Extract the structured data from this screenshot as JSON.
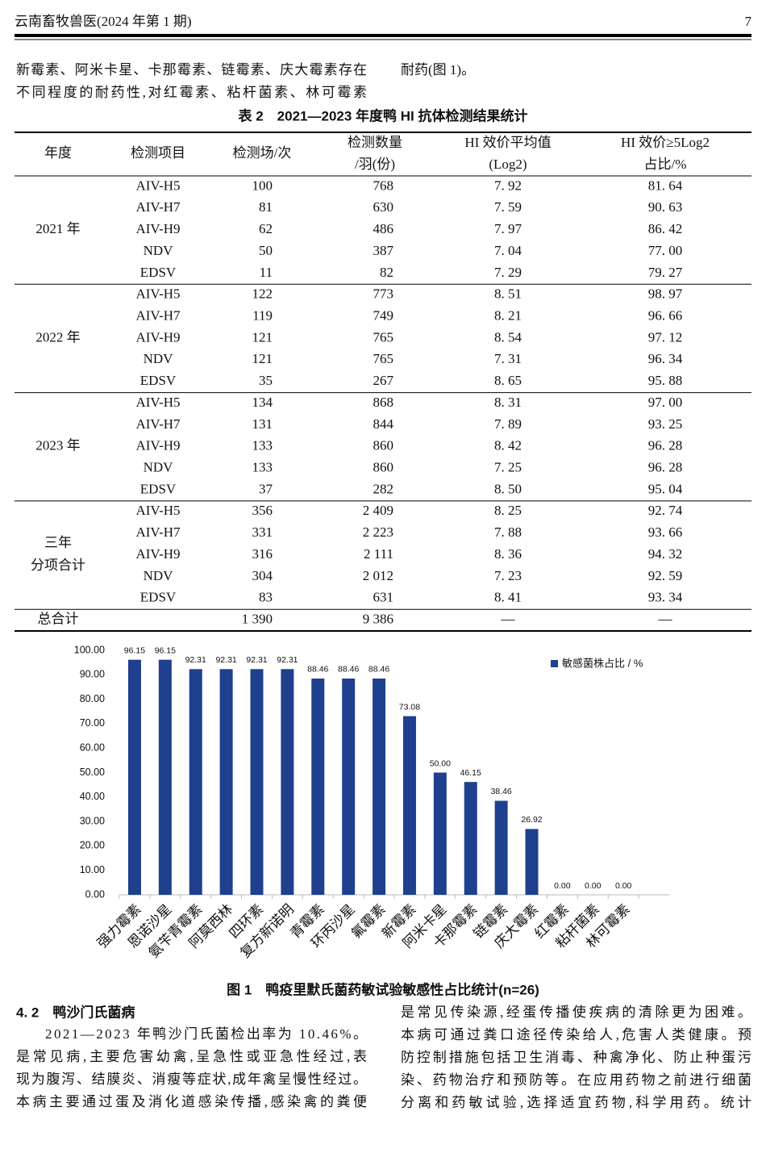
{
  "header": {
    "journal": "云南畜牧兽医(2024 年第 1 期)",
    "page": "7"
  },
  "intro": {
    "left": [
      "新霉素、阿米卡星、卡那霉素、链霉素、庆大霉素存在",
      "不同程度的耐药性,对红霉素、粘杆菌素、林可霉素"
    ],
    "right": [
      "耐药(图 1)。"
    ]
  },
  "table": {
    "caption": "表 2　2021—2023 年度鸭 HI 抗体检测结果统计",
    "columns": [
      [
        "年度"
      ],
      [
        "检测项目"
      ],
      [
        "检测场/次"
      ],
      [
        "检测数量",
        "/羽(份)"
      ],
      [
        "HI 效价平均值",
        "(Log2)"
      ],
      [
        "HI 效价≥5Log2",
        "占比/%"
      ]
    ],
    "groups": [
      {
        "year": [
          "2021 年"
        ],
        "rows": [
          [
            "AIV-H5",
            "100",
            "768",
            "7. 92",
            "81. 64"
          ],
          [
            "AIV-H7",
            "81",
            "630",
            "7. 59",
            "90. 63"
          ],
          [
            "AIV-H9",
            "62",
            "486",
            "7. 97",
            "86. 42"
          ],
          [
            "NDV",
            "50",
            "387",
            "7. 04",
            "77. 00"
          ],
          [
            "EDSV",
            "11",
            "82",
            "7. 29",
            "79. 27"
          ]
        ]
      },
      {
        "year": [
          "2022 年"
        ],
        "rows": [
          [
            "AIV-H5",
            "122",
            "773",
            "8. 51",
            "98. 97"
          ],
          [
            "AIV-H7",
            "119",
            "749",
            "8. 21",
            "96. 66"
          ],
          [
            "AIV-H9",
            "121",
            "765",
            "8. 54",
            "97. 12"
          ],
          [
            "NDV",
            "121",
            "765",
            "7. 31",
            "96. 34"
          ],
          [
            "EDSV",
            "35",
            "267",
            "8. 65",
            "95. 88"
          ]
        ]
      },
      {
        "year": [
          "2023 年"
        ],
        "rows": [
          [
            "AIV-H5",
            "134",
            "868",
            "8. 31",
            "97. 00"
          ],
          [
            "AIV-H7",
            "131",
            "844",
            "7. 89",
            "93. 25"
          ],
          [
            "AIV-H9",
            "133",
            "860",
            "8. 42",
            "96. 28"
          ],
          [
            "NDV",
            "133",
            "860",
            "7. 25",
            "96. 28"
          ],
          [
            "EDSV",
            "37",
            "282",
            "8. 50",
            "95. 04"
          ]
        ]
      },
      {
        "year": [
          "三年",
          "分项合计"
        ],
        "rows": [
          [
            "AIV-H5",
            "356",
            "2 409",
            "8. 25",
            "92. 74"
          ],
          [
            "AIV-H7",
            "331",
            "2 223",
            "7. 88",
            "93. 66"
          ],
          [
            "AIV-H9",
            "316",
            "2 111",
            "8. 36",
            "94. 32"
          ],
          [
            "NDV",
            "304",
            "2 012",
            "7. 23",
            "92. 59"
          ],
          [
            "EDSV",
            "83",
            "631",
            "8. 41",
            "93. 34"
          ]
        ]
      }
    ],
    "total": [
      "总合计",
      "",
      "1 390",
      "9 386",
      "—",
      "—"
    ]
  },
  "chart_data": {
    "type": "bar",
    "caption": "图 1　鸭疫里默氏菌药敏试验敏感性占比统计(n=26)",
    "categories": [
      "强力霉素",
      "恩诺沙星",
      "氨苄青霉素",
      "阿莫西林",
      "四环素",
      "复方新诺明",
      "青霉素",
      "环丙沙星",
      "氟霉素",
      "新霉素",
      "阿米卡星",
      "卡那霉素",
      "链霉素",
      "庆大霉素",
      "红霉素",
      "粘杆菌素",
      "林可霉素"
    ],
    "series": [
      {
        "name": "敏感菌株占比 / %",
        "color": "#1f3f8f",
        "values": [
          96.15,
          96.15,
          92.31,
          92.31,
          92.31,
          92.31,
          88.46,
          88.46,
          88.46,
          73.08,
          50,
          46.15,
          38.46,
          26.92,
          0,
          0,
          0
        ],
        "value_labels": [
          "96.15",
          "96.15",
          "92.31",
          "92.31",
          "92.31",
          "92.31",
          "88.46",
          "88.46",
          "88.46",
          "73.08",
          "50.00",
          "46.15",
          "38.46",
          "26.92",
          "0.00",
          "0.00",
          "0.00"
        ]
      }
    ],
    "ylim": [
      0,
      100
    ],
    "yticks": [
      {
        "value": 0,
        "label": "0.00"
      },
      {
        "value": 10,
        "label": "10.00"
      },
      {
        "value": 20,
        "label": "20.00"
      },
      {
        "value": 30,
        "label": "30.00"
      },
      {
        "value": 40,
        "label": "40.00"
      },
      {
        "value": 50,
        "label": "50.00"
      },
      {
        "value": 60,
        "label": "60.00"
      },
      {
        "value": 70,
        "label": "70.00"
      },
      {
        "value": 80,
        "label": "80.00"
      },
      {
        "value": 90,
        "label": "90.00"
      },
      {
        "value": 100,
        "label": "100.00"
      }
    ],
    "legend": "upper right"
  },
  "section": {
    "heading": "4. 2　鸭沙门氏菌病",
    "left": [
      "2021—2023 年鸭沙门氏菌检出率为 10.46%。",
      "是常见病,主要危害幼禽,呈急性或亚急性经过,表",
      "现为腹泻、结膜炎、消瘦等症状,成年禽呈慢性经过。",
      "本病主要通过蛋及消化道感染传播,感染禽的粪便"
    ],
    "right": [
      "是常见传染源,经蛋传播使疾病的清除更为困难。",
      "本病可通过粪口途径传染给人,危害人类健康。预",
      "防控制措施包括卫生消毒、种禽净化、防止种蛋污",
      "染、药物治疗和预防等。在应用药物之前进行细菌",
      "分离和药敏试验,选择适宜药物,科学用药。统计"
    ]
  }
}
